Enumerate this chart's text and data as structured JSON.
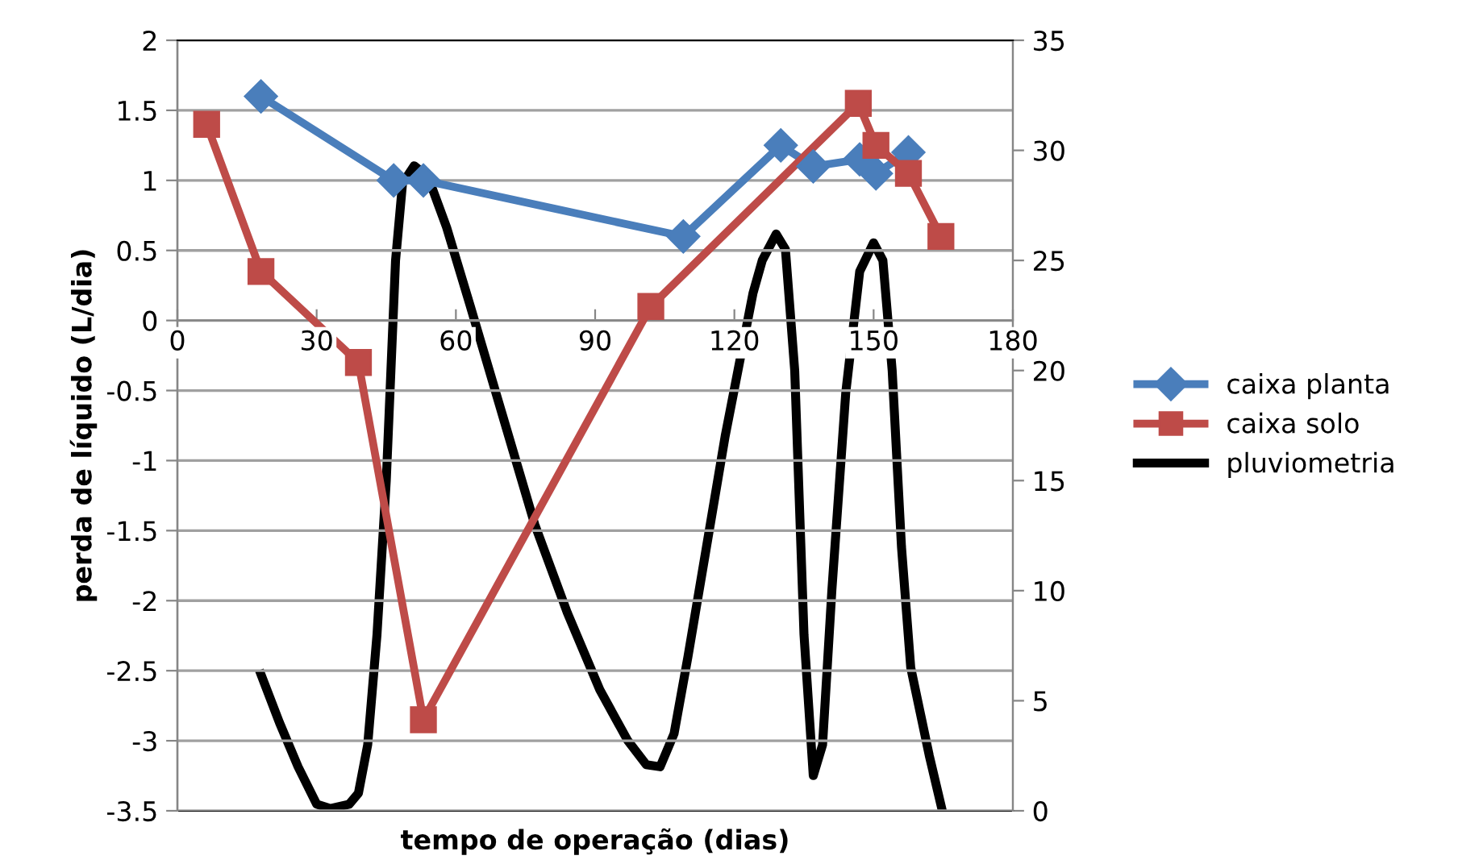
{
  "chart_data": {
    "type": "line",
    "xlabel": "tempo de operação (dias)",
    "ylabel": "perda de líquido (L/dia)",
    "xlim": [
      0,
      180
    ],
    "xticks": [
      0,
      30,
      60,
      90,
      120,
      150,
      180
    ],
    "ylim": [
      -3.5,
      2
    ],
    "yticks": [
      -3.5,
      -3,
      -2.5,
      -2,
      -1.5,
      -1,
      -0.5,
      0,
      0.5,
      1,
      1.5,
      2
    ],
    "y2lim": [
      0,
      35
    ],
    "y2ticks": [
      0,
      5,
      10,
      15,
      20,
      25,
      30,
      35
    ],
    "grid": "y",
    "legend": "right",
    "series": [
      {
        "name": "caixa planta",
        "color": "#4a7ebb",
        "marker": "diamond",
        "x": [
          18,
          46.6,
          53,
          109,
          130,
          137,
          147,
          150.5,
          157.5
        ],
        "values": [
          1.6,
          1.0,
          1.0,
          0.6,
          1.25,
          1.1,
          1.15,
          1.05,
          1.2
        ]
      },
      {
        "name": "caixa solo",
        "color": "#be4b48",
        "marker": "square",
        "x": [
          6.3,
          18,
          39,
          53,
          102,
          146.7,
          150.5,
          157.5,
          164.5
        ],
        "values": [
          1.4,
          0.35,
          -0.3,
          -2.85,
          0.1,
          1.55,
          1.25,
          1.05,
          0.6
        ]
      },
      {
        "name": "pluviometria",
        "color": "#000000",
        "marker": "none",
        "axis": "y2",
        "x": [
          18,
          22,
          26,
          30,
          33,
          37,
          39,
          41,
          43,
          45,
          46,
          47,
          48.5,
          51,
          54,
          58,
          63,
          70,
          77,
          84,
          91,
          97,
          101,
          104,
          107,
          110,
          114,
          118,
          124,
          126,
          129,
          131,
          133,
          135,
          137,
          139,
          141,
          144,
          147,
          150,
          152,
          154,
          156,
          158,
          160,
          162,
          164.8
        ],
        "values": [
          6.2,
          4,
          2,
          0.3,
          0.1,
          0.3,
          0.8,
          3,
          8,
          15,
          20,
          25,
          28.5,
          29.3,
          28.8,
          26.5,
          23,
          18,
          13,
          9,
          5.5,
          3.2,
          2.1,
          2,
          3.5,
          7,
          12,
          17,
          23.5,
          25,
          26.2,
          25.5,
          20,
          8,
          1.6,
          3,
          10,
          19,
          24.5,
          25.8,
          25,
          20,
          12,
          6.5,
          4.5,
          2.5,
          0
        ]
      }
    ]
  }
}
